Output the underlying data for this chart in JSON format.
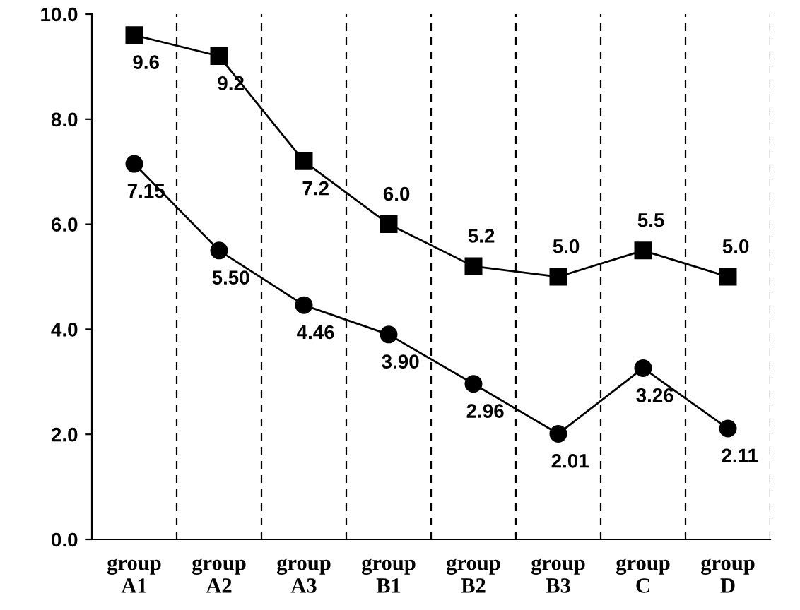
{
  "chart_data": {
    "type": "line",
    "categories": [
      "group\nA1",
      "group\nA2",
      "group\nA3",
      "group\nB1",
      "group\nB2",
      "group\nB3",
      "group\nC",
      "group\nD"
    ],
    "series": [
      {
        "color": "#000000",
        "marker": "square",
        "values": [
          9.6,
          9.2,
          7.2,
          6.0,
          5.2,
          5.0,
          5.5,
          5.0
        ],
        "value_labels": [
          "9.6",
          "9.2",
          "7.2",
          "6.0",
          "5.2",
          "5.0",
          "5.5",
          "5.0"
        ]
      },
      {
        "color": "#000000",
        "marker": "circle",
        "values": [
          7.15,
          5.5,
          4.46,
          3.9,
          2.96,
          2.01,
          3.26,
          2.11
        ],
        "value_labels": [
          "7.15",
          "5.50",
          "4.46",
          "3.90",
          "2.96",
          "2.01",
          "3.26",
          "2.11"
        ]
      }
    ],
    "ylim": [
      0,
      10
    ],
    "yticks": [
      {
        "value": 0,
        "label": "0.0"
      },
      {
        "value": 2,
        "label": "2.0"
      },
      {
        "value": 4,
        "label": "4.0"
      },
      {
        "value": 6,
        "label": "6.0"
      },
      {
        "value": 8,
        "label": "8.0"
      },
      {
        "value": 10,
        "label": "10.0"
      }
    ],
    "grid": "x",
    "legend": false,
    "line_style": "solid"
  }
}
